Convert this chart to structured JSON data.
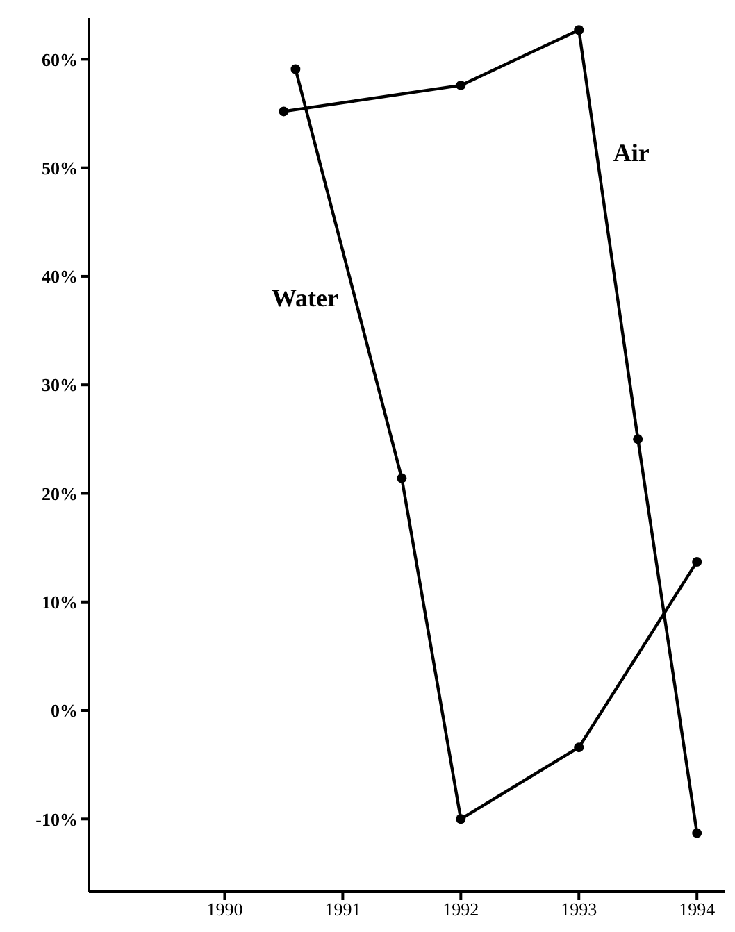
{
  "chart_data": {
    "type": "line",
    "marker": "circle",
    "line_style": "solid",
    "series": [
      {
        "name": "Water",
        "color": "#000000",
        "x": [
          1990.6,
          1991.5,
          1992,
          1993,
          1994
        ],
        "values": [
          59.1,
          21.4,
          -10.0,
          -3.4,
          13.7
        ]
      },
      {
        "name": "Air",
        "color": "#000000",
        "x": [
          1990.5,
          1992,
          1993,
          1993.5,
          1994
        ],
        "values": [
          55.2,
          57.6,
          62.7,
          25.0,
          -11.3
        ]
      }
    ],
    "xlim": [
      1988.85,
      1994.24
    ],
    "xticks": [
      1990,
      1991,
      1992,
      1993,
      1994
    ],
    "ylim": [
      -16.7,
      63.8
    ],
    "yticks": [
      {
        "value": -10,
        "label": "-10%"
      },
      {
        "value": 0,
        "label": "0%"
      },
      {
        "value": 10,
        "label": "10%"
      },
      {
        "value": 20,
        "label": "20%"
      },
      {
        "value": 30,
        "label": "30%"
      },
      {
        "value": 40,
        "label": "40%"
      },
      {
        "value": 50,
        "label": "50%"
      },
      {
        "value": 60,
        "label": "60%"
      }
    ]
  }
}
